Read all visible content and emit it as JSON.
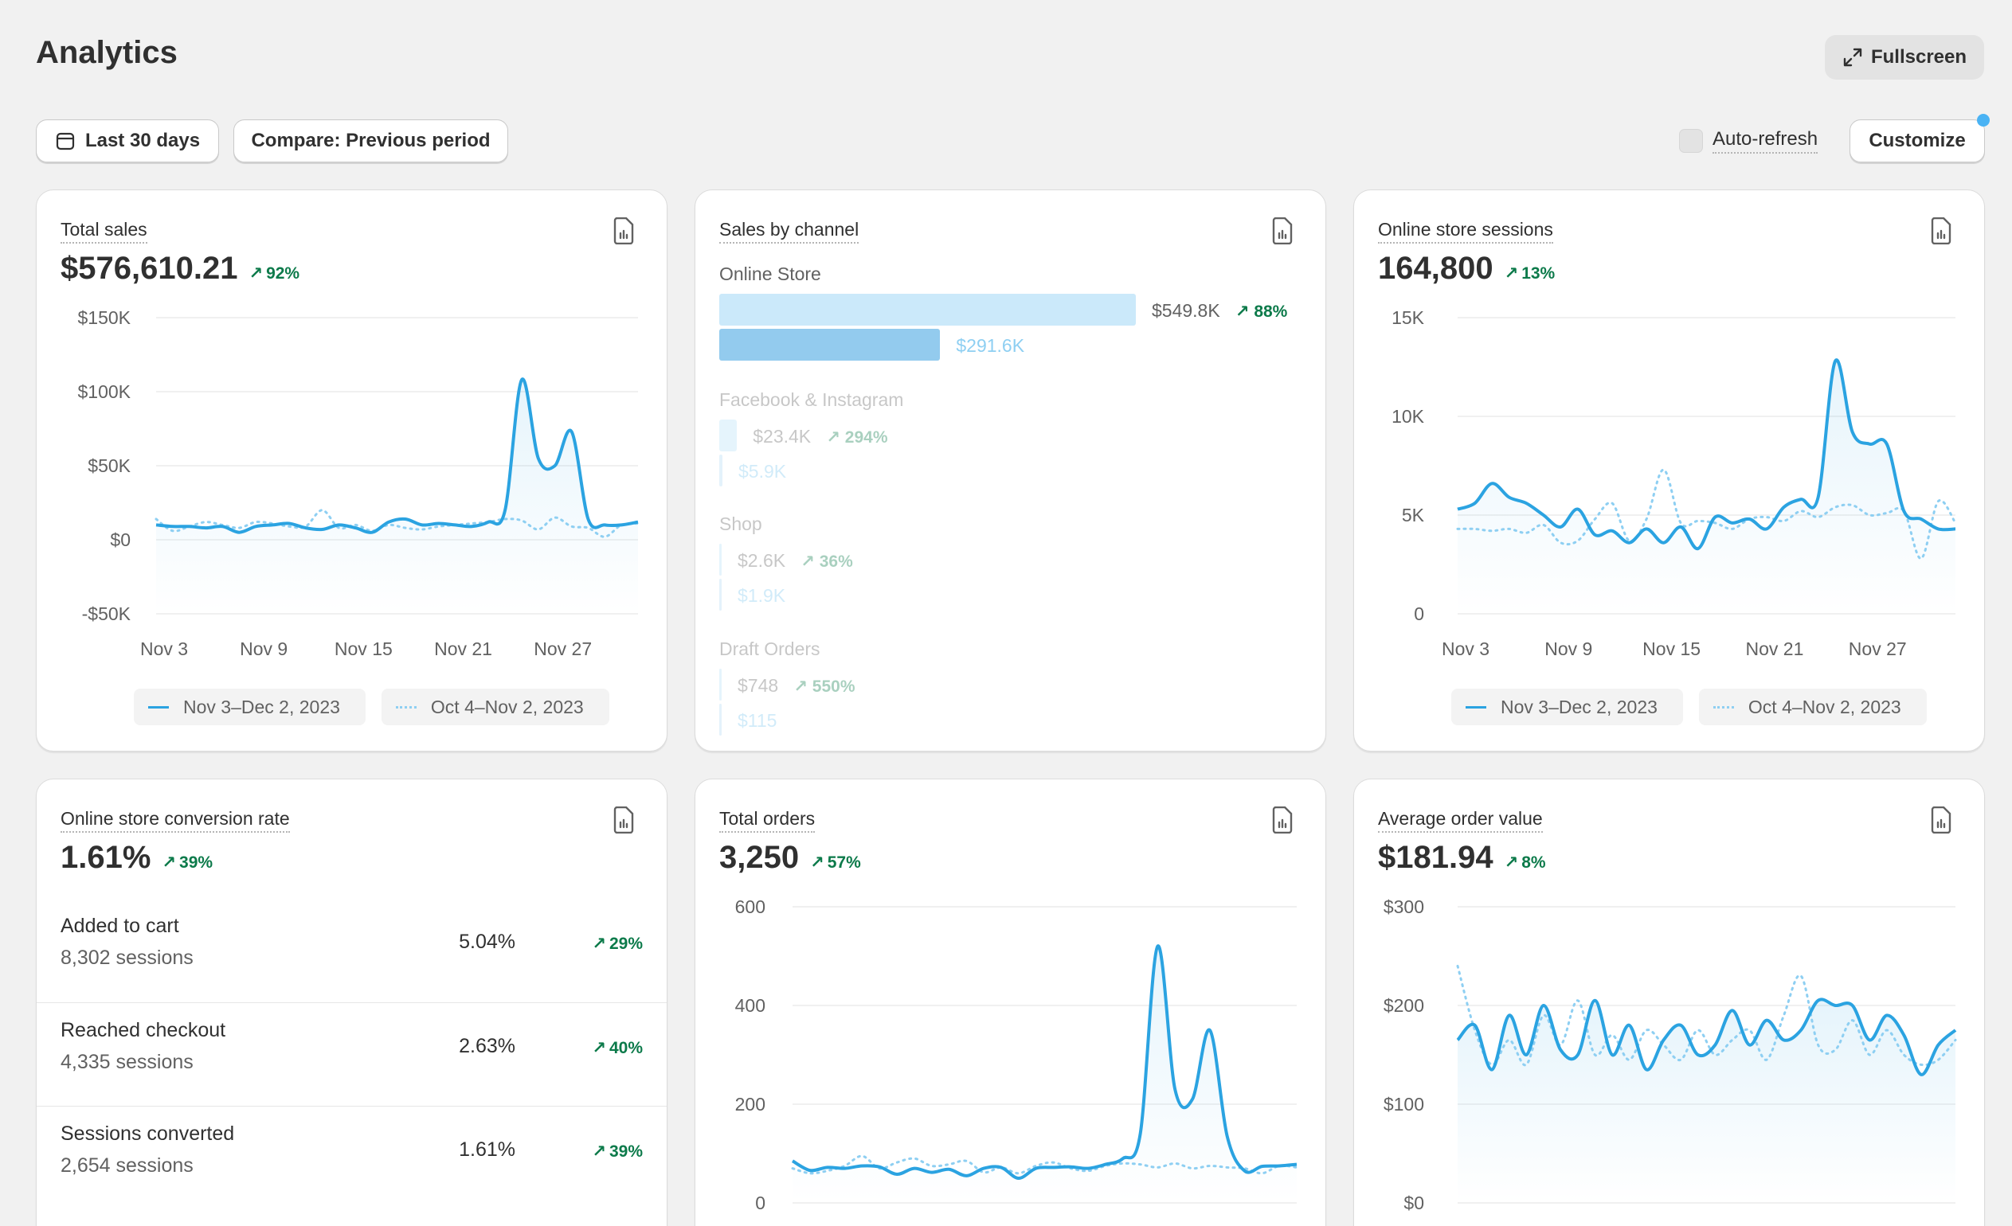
{
  "page": {
    "title": "Analytics",
    "fullscreen_label": "Fullscreen",
    "date_range_label": "Last 30 days",
    "compare_label": "Compare: Previous period",
    "auto_refresh_label": "Auto-refresh",
    "customize_label": "Customize"
  },
  "colors": {
    "current": "#2ba3e1",
    "previous": "#8ecff2",
    "positive": "#0c7a4a"
  },
  "legend": {
    "current": "Nov 3–Dec 2, 2023",
    "previous": "Oct 4–Nov 2, 2023"
  },
  "total_sales": {
    "title": "Total sales",
    "value": "$576,610.21",
    "delta": "92%"
  },
  "sales_by_channel": {
    "title": "Sales by channel",
    "channels": [
      {
        "name": "Online Store",
        "current": "$549.8K",
        "previous": "$291.6K",
        "delta": "88%",
        "current_value": 549.8,
        "previous_value": 291.6
      },
      {
        "name": "Facebook & Instagram",
        "current": "$23.4K",
        "previous": "$5.9K",
        "delta": "294%",
        "current_value": 23.4,
        "previous_value": 5.9
      },
      {
        "name": "Shop",
        "current": "$2.6K",
        "previous": "$1.9K",
        "delta": "36%",
        "current_value": 2.6,
        "previous_value": 1.9
      },
      {
        "name": "Draft Orders",
        "current": "$748",
        "previous": "$115",
        "delta": "550%",
        "current_value": 0.748,
        "previous_value": 0.115
      }
    ]
  },
  "online_store_sessions": {
    "title": "Online store sessions",
    "value": "164,800",
    "delta": "13%"
  },
  "conversion": {
    "title": "Online store conversion rate",
    "value": "1.61%",
    "delta": "39%",
    "rows": [
      {
        "label": "Added to cart",
        "sessions": "8,302 sessions",
        "rate": "5.04%",
        "delta": "29%"
      },
      {
        "label": "Reached checkout",
        "sessions": "4,335 sessions",
        "rate": "2.63%",
        "delta": "40%"
      },
      {
        "label": "Sessions converted",
        "sessions": "2,654 sessions",
        "rate": "1.61%",
        "delta": "39%"
      }
    ]
  },
  "total_orders": {
    "title": "Total orders",
    "value": "3,250",
    "delta": "57%"
  },
  "average_order_value": {
    "title": "Average order value",
    "value": "$181.94",
    "delta": "8%"
  },
  "chart_data": [
    {
      "id": "total_sales",
      "type": "line",
      "title": "Total sales",
      "x_tick_labels": [
        "Nov 3",
        "Nov 9",
        "Nov 15",
        "Nov 21",
        "Nov 27"
      ],
      "y_tick_labels": [
        "$150K",
        "$100K",
        "$50K",
        "$0",
        "-$50K"
      ],
      "ylim": [
        -50,
        150
      ],
      "y_ticks": [
        150,
        100,
        50,
        0,
        -50
      ],
      "x_tick_index": [
        0,
        6,
        12,
        18,
        24
      ],
      "series": [
        {
          "name": "Nov 3–Dec 2, 2023",
          "style": "solid",
          "values": [
            10,
            9,
            9,
            8,
            9,
            5,
            9,
            10,
            11,
            8,
            7,
            10,
            8,
            5,
            12,
            14,
            10,
            11,
            10,
            9,
            12,
            20,
            108,
            55,
            50,
            73,
            14,
            10,
            10,
            12
          ]
        },
        {
          "name": "Oct 4–Nov 2, 2023",
          "style": "dotted",
          "values": [
            14,
            6,
            9,
            12,
            10,
            8,
            12,
            11,
            9,
            9,
            20,
            8,
            10,
            6,
            10,
            8,
            7,
            9,
            10,
            11,
            12,
            14,
            13,
            7,
            15,
            9,
            8,
            2,
            10,
            11
          ]
        }
      ]
    },
    {
      "id": "online_store_sessions",
      "type": "line",
      "title": "Online store sessions",
      "x_tick_labels": [
        "Nov 3",
        "Nov 9",
        "Nov 15",
        "Nov 21",
        "Nov 27"
      ],
      "y_tick_labels": [
        "15K",
        "10K",
        "5K",
        "0"
      ],
      "ylim": [
        0,
        15
      ],
      "y_ticks": [
        15,
        10,
        5,
        0
      ],
      "x_tick_index": [
        0,
        6,
        12,
        18,
        24
      ],
      "series": [
        {
          "name": "Nov 3–Dec 2, 2023",
          "style": "solid",
          "values": [
            5.3,
            5.6,
            6.6,
            5.9,
            5.6,
            5.0,
            4.4,
            5.3,
            4.0,
            4.2,
            3.6,
            4.3,
            3.6,
            4.4,
            3.3,
            4.9,
            4.6,
            4.8,
            4.3,
            5.4,
            5.8,
            5.9,
            12.8,
            9.2,
            8.6,
            8.6,
            5.2,
            4.8,
            4.3,
            4.3
          ]
        },
        {
          "name": "Oct 4–Nov 2, 2023",
          "style": "dotted",
          "values": [
            4.3,
            4.3,
            4.2,
            4.3,
            4.1,
            4.5,
            3.6,
            3.7,
            4.8,
            5.6,
            3.7,
            4.8,
            7.3,
            4.6,
            4.7,
            4.6,
            4.3,
            4.8,
            4.9,
            4.7,
            5.2,
            4.9,
            5.4,
            5.5,
            5.0,
            5.1,
            5.2,
            2.8,
            5.7,
            4.6
          ]
        }
      ]
    },
    {
      "id": "total_orders",
      "type": "line",
      "title": "Total orders",
      "x_tick_labels": [],
      "y_tick_labels": [
        "600",
        "400",
        "200",
        "0"
      ],
      "ylim": [
        0,
        600
      ],
      "y_ticks": [
        600,
        400,
        200,
        0
      ],
      "x_tick_index": [],
      "series": [
        {
          "name": "Nov 3–Dec 2, 2023",
          "style": "solid",
          "values": [
            85,
            66,
            72,
            70,
            75,
            73,
            58,
            70,
            62,
            68,
            55,
            70,
            72,
            50,
            70,
            72,
            73,
            70,
            78,
            90,
            140,
            520,
            230,
            210,
            350,
            135,
            65,
            74,
            75,
            78
          ]
        },
        {
          "name": "Oct 4–Nov 2, 2023",
          "style": "dotted",
          "values": [
            70,
            60,
            65,
            75,
            95,
            70,
            82,
            90,
            75,
            78,
            85,
            62,
            72,
            60,
            75,
            82,
            70,
            65,
            75,
            80,
            78,
            72,
            80,
            70,
            75,
            72,
            70,
            60,
            75,
            72
          ]
        }
      ]
    },
    {
      "id": "average_order_value",
      "type": "line",
      "title": "Average order value",
      "x_tick_labels": [],
      "y_tick_labels": [
        "$300",
        "$200",
        "$100",
        "$0"
      ],
      "ylim": [
        0,
        300
      ],
      "y_ticks": [
        300,
        200,
        100,
        0
      ],
      "x_tick_index": [],
      "series": [
        {
          "name": "Nov 3–Dec 2, 2023",
          "style": "solid",
          "values": [
            165,
            180,
            135,
            190,
            150,
            200,
            155,
            150,
            205,
            150,
            180,
            135,
            165,
            180,
            150,
            160,
            195,
            160,
            185,
            165,
            175,
            205,
            200,
            200,
            165,
            190,
            170,
            130,
            160,
            175
          ]
        },
        {
          "name": "Oct 4–Nov 2, 2023",
          "style": "dotted",
          "values": [
            240,
            175,
            140,
            165,
            140,
            190,
            160,
            205,
            150,
            170,
            145,
            175,
            160,
            145,
            175,
            150,
            165,
            175,
            145,
            190,
            230,
            160,
            155,
            185,
            150,
            175,
            150,
            140,
            145,
            165
          ]
        }
      ]
    }
  ]
}
